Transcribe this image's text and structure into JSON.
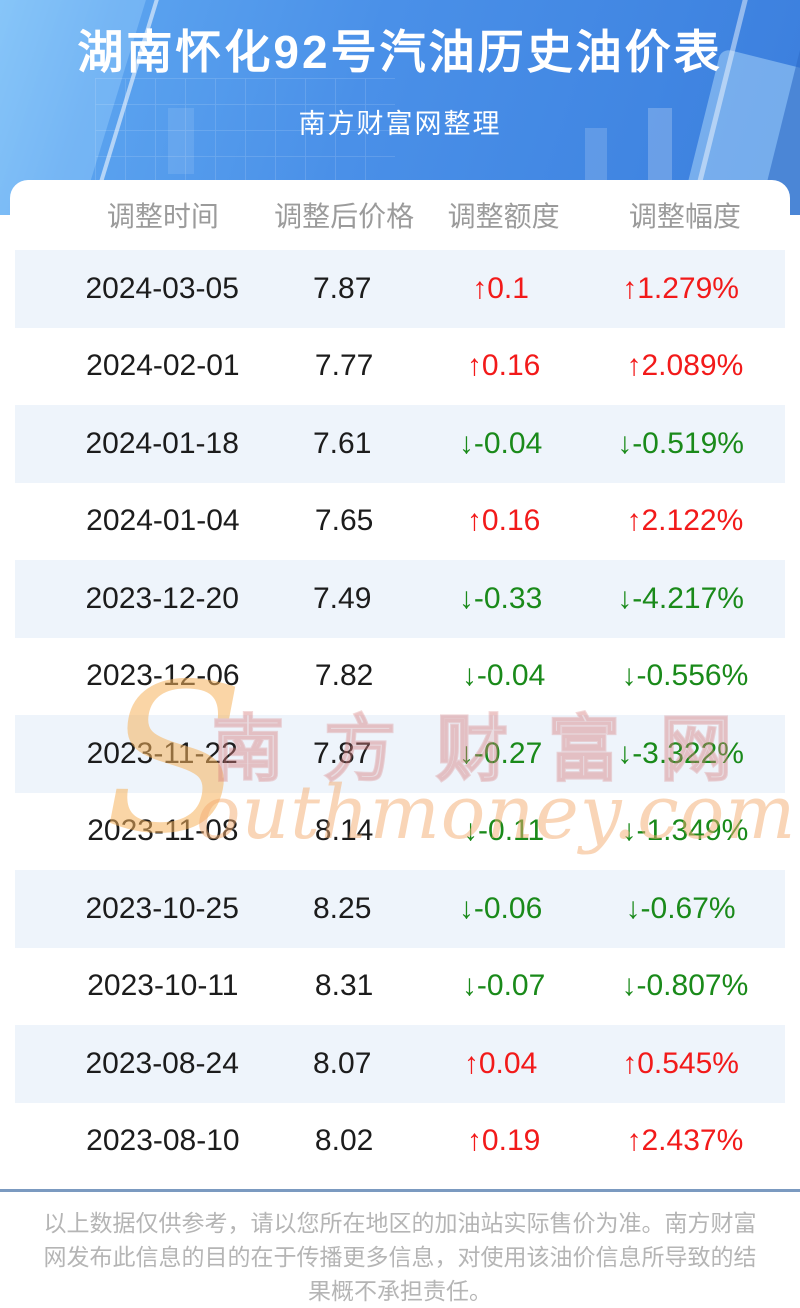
{
  "header": {
    "title": "湖南怀化92号汽油历史油价表",
    "subtitle": "南方财富网整理"
  },
  "table": {
    "columns": [
      "调整时间",
      "调整后价格",
      "调整额度",
      "调整幅度"
    ],
    "up_arrow": "↑",
    "down_arrow": "↓",
    "rows": [
      {
        "date": "2024-03-05",
        "price": "7.87",
        "change": "0.1",
        "pct": "1.279%",
        "direction": "up"
      },
      {
        "date": "2024-02-01",
        "price": "7.77",
        "change": "0.16",
        "pct": "2.089%",
        "direction": "up"
      },
      {
        "date": "2024-01-18",
        "price": "7.61",
        "change": "-0.04",
        "pct": "-0.519%",
        "direction": "down"
      },
      {
        "date": "2024-01-04",
        "price": "7.65",
        "change": "0.16",
        "pct": "2.122%",
        "direction": "up"
      },
      {
        "date": "2023-12-20",
        "price": "7.49",
        "change": "-0.33",
        "pct": "-4.217%",
        "direction": "down"
      },
      {
        "date": "2023-12-06",
        "price": "7.82",
        "change": "-0.04",
        "pct": "-0.556%",
        "direction": "down"
      },
      {
        "date": "2023-11-22",
        "price": "7.87",
        "change": "-0.27",
        "pct": "-3.322%",
        "direction": "down"
      },
      {
        "date": "2023-11-08",
        "price": "8.14",
        "change": "-0.11",
        "pct": "-1.349%",
        "direction": "down"
      },
      {
        "date": "2023-10-25",
        "price": "8.25",
        "change": "-0.06",
        "pct": "-0.67%",
        "direction": "down"
      },
      {
        "date": "2023-10-11",
        "price": "8.31",
        "change": "-0.07",
        "pct": "-0.807%",
        "direction": "down"
      },
      {
        "date": "2023-08-24",
        "price": "8.07",
        "change": "0.04",
        "pct": "0.545%",
        "direction": "up"
      },
      {
        "date": "2023-08-10",
        "price": "8.02",
        "change": "0.19",
        "pct": "2.437%",
        "direction": "up"
      }
    ]
  },
  "watermark": {
    "big_letter": "S",
    "cn_text": "南方财富网",
    "en_text": "outhmoney.com"
  },
  "footer": {
    "disclaimer": "以上数据仅供参考，请以您所在地区的加油站实际售价为准。南方财富网发布此信息的目的在于传播更多信息，对使用该油价信息所导致的结果概不承担责任。"
  },
  "colors": {
    "up_red": "#f21a1a",
    "down_green": "#1a8a1a",
    "stripe_blue": "#eef4fb",
    "hero_blue": "#4a90e8",
    "divider_blue": "#7b9ac0"
  }
}
